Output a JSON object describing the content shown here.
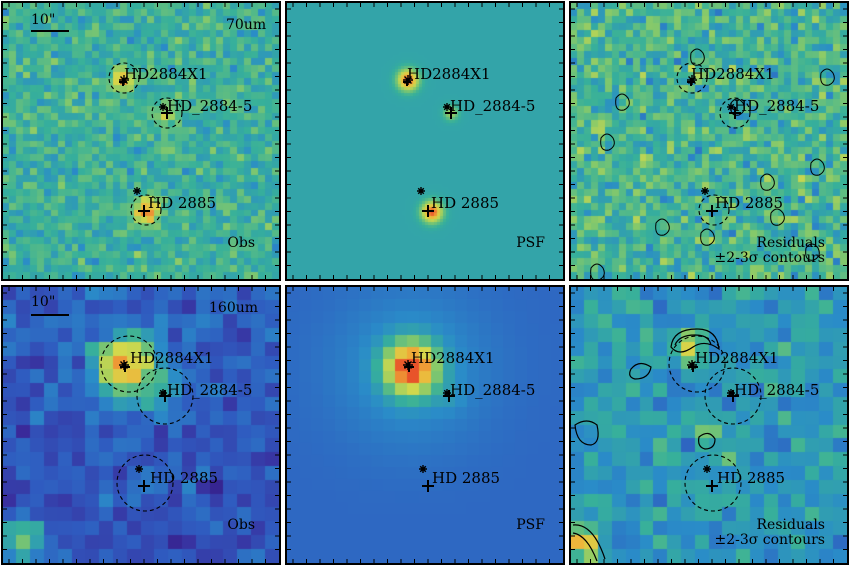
{
  "panels": [
    {
      "id": "p70-obs",
      "band": "70um",
      "kind": "obs",
      "corner_label": "Obs",
      "scale_label": "10\"",
      "sources": [
        {
          "name": "HD2884X1"
        },
        {
          "name": "HD_2884-5"
        },
        {
          "name": "HD 2885"
        }
      ]
    },
    {
      "id": "p70-psf",
      "kind": "psf",
      "corner_label": "PSF",
      "sources": [
        {
          "name": "HD2884X1"
        },
        {
          "name": "HD_2884-5"
        },
        {
          "name": "HD 2885"
        }
      ]
    },
    {
      "id": "p70-res",
      "kind": "residual",
      "corner_label_1": "Residuals",
      "corner_label_2": "±2-3σ contours",
      "sources": [
        {
          "name": "HD2884X1"
        },
        {
          "name": "HD_2884-5"
        },
        {
          "name": "HD 2885"
        }
      ]
    },
    {
      "id": "p160-obs",
      "band": "160um",
      "kind": "obs",
      "corner_label": "Obs",
      "scale_label": "10\"",
      "sources": [
        {
          "name": "HD2884X1"
        },
        {
          "name": "HD_2884-5"
        },
        {
          "name": "HD 2885"
        }
      ]
    },
    {
      "id": "p160-psf",
      "kind": "psf",
      "corner_label": "PSF",
      "sources": [
        {
          "name": "HD2884X1"
        },
        {
          "name": "HD_2884-5"
        },
        {
          "name": "HD 2885"
        }
      ]
    },
    {
      "id": "p160-res",
      "kind": "residual",
      "corner_label_1": "Residuals",
      "corner_label_2": "±2-3σ contours",
      "sources": [
        {
          "name": "HD2884X1"
        },
        {
          "name": "HD_2884-5"
        },
        {
          "name": "HD 2885"
        }
      ]
    }
  ],
  "colors": {
    "colormap": [
      "#1f0a5e",
      "#3a2a9a",
      "#2f5cc0",
      "#2a8cc8",
      "#37b09a",
      "#86c96a",
      "#d3d94c",
      "#f0b43a",
      "#e8532a"
    ],
    "marker": "#000000"
  }
}
